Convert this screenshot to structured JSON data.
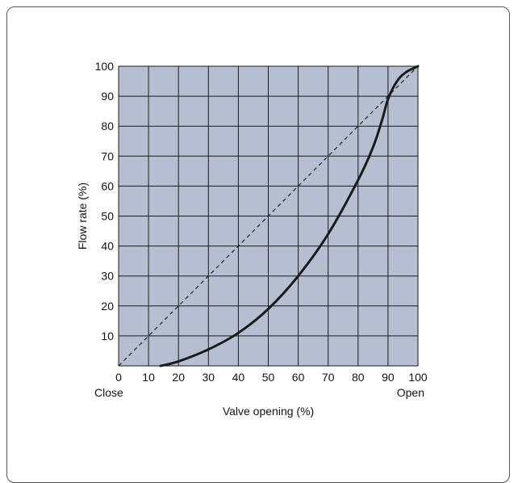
{
  "chart_data": {
    "type": "line",
    "xlabel": "Valve opening (%)",
    "ylabel": "Flow rate (%)",
    "xlim": [
      0,
      100
    ],
    "ylim": [
      0,
      100
    ],
    "x_ticks": [
      "0",
      "10",
      "20",
      "30",
      "40",
      "50",
      "60",
      "70",
      "80",
      "90",
      "100"
    ],
    "y_ticks": [
      "10",
      "20",
      "30",
      "40",
      "50",
      "60",
      "70",
      "80",
      "90",
      "100"
    ],
    "x_end_labels": {
      "left": "Close",
      "right": "Open"
    },
    "grid": true,
    "colors": {
      "plot_background": "#b6bfd1",
      "grid": "#1a1a1a",
      "curve": "#1a1a1a"
    },
    "series": [
      {
        "style": "dashed",
        "x": [
          0,
          100
        ],
        "y": [
          0,
          100
        ]
      },
      {
        "style": "solid",
        "x": [
          14,
          20,
          30,
          40,
          50,
          60,
          70,
          80,
          85,
          88,
          90,
          93,
          96,
          100
        ],
        "y": [
          0,
          1.5,
          5.5,
          11,
          19,
          30,
          44,
          62,
          73,
          82,
          89,
          95,
          98,
          100
        ]
      }
    ]
  }
}
